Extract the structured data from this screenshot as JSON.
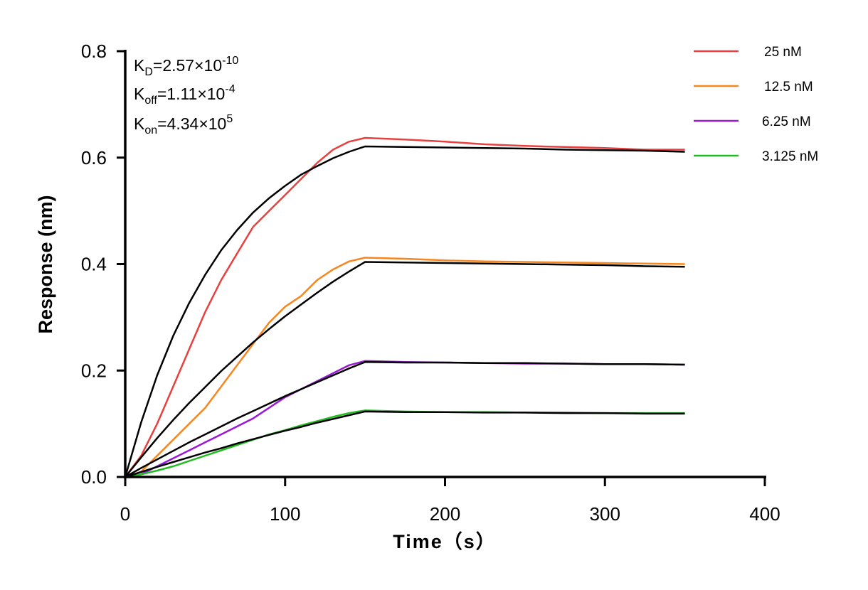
{
  "chart_data": {
    "type": "line",
    "xlabel": "Time（s）",
    "ylabel": "Response (nm)",
    "xlim": [
      0,
      400
    ],
    "ylim": [
      0,
      0.8
    ],
    "xticks": [
      "0",
      "100",
      "200",
      "300",
      "400"
    ],
    "yticks": [
      "0.0",
      "0.2",
      "0.4",
      "0.6",
      "0.8"
    ],
    "grid": false,
    "legend_position": "top-right",
    "annotations": {
      "kd": {
        "k": "K",
        "sub": "D",
        "val": "=2.57×10",
        "exp": "-10"
      },
      "koff": {
        "k": "K",
        "sub": "off",
        "val": "=1.11×10",
        "exp": "-4"
      },
      "kon": {
        "k": "K",
        "sub": "on",
        "val": "=4.34×10",
        "exp": "5"
      }
    },
    "x": [
      0,
      10,
      20,
      30,
      40,
      50,
      60,
      70,
      80,
      90,
      100,
      110,
      120,
      130,
      140,
      150,
      175,
      200,
      225,
      250,
      275,
      300,
      325,
      350
    ],
    "series": [
      {
        "name": "25 nM",
        "color": "#e8403f",
        "values": [
          0,
          0.04,
          0.1,
          0.17,
          0.24,
          0.31,
          0.37,
          0.42,
          0.47,
          0.5,
          0.53,
          0.56,
          0.59,
          0.615,
          0.63,
          0.637,
          0.634,
          0.63,
          0.625,
          0.622,
          0.62,
          0.618,
          0.615,
          0.615
        ],
        "fit": [
          0,
          0.103,
          0.191,
          0.265,
          0.327,
          0.38,
          0.426,
          0.464,
          0.497,
          0.524,
          0.547,
          0.568,
          0.584,
          0.599,
          0.611,
          0.621,
          0.62,
          0.619,
          0.618,
          0.617,
          0.615,
          0.614,
          0.613,
          0.611
        ]
      },
      {
        "name": "12.5 nM",
        "color": "#f7861f",
        "values": [
          0,
          0.01,
          0.04,
          0.07,
          0.1,
          0.13,
          0.17,
          0.21,
          0.25,
          0.29,
          0.32,
          0.34,
          0.37,
          0.39,
          0.405,
          0.412,
          0.41,
          0.407,
          0.405,
          0.404,
          0.403,
          0.402,
          0.401,
          0.4
        ],
        "fit": [
          0,
          0.037,
          0.073,
          0.107,
          0.139,
          0.169,
          0.199,
          0.226,
          0.253,
          0.278,
          0.302,
          0.324,
          0.346,
          0.367,
          0.386,
          0.404,
          0.403,
          0.402,
          0.401,
          0.4,
          0.399,
          0.398,
          0.396,
          0.395
        ]
      },
      {
        "name": "6.25 nM",
        "color": "#9b17d6",
        "values": [
          0,
          0.005,
          0.02,
          0.035,
          0.05,
          0.065,
          0.08,
          0.095,
          0.11,
          0.13,
          0.15,
          0.165,
          0.18,
          0.195,
          0.21,
          0.218,
          0.216,
          0.215,
          0.214,
          0.213,
          0.213,
          0.212,
          0.212,
          0.211
        ],
        "fit": [
          0,
          0.017,
          0.033,
          0.049,
          0.065,
          0.08,
          0.095,
          0.11,
          0.124,
          0.138,
          0.152,
          0.165,
          0.178,
          0.191,
          0.204,
          0.216,
          0.215,
          0.215,
          0.214,
          0.214,
          0.213,
          0.212,
          0.212,
          0.211
        ]
      },
      {
        "name": "3.125 nM",
        "color": "#1fbd1f",
        "values": [
          0,
          0.005,
          0.012,
          0.02,
          0.03,
          0.04,
          0.05,
          0.06,
          0.07,
          0.08,
          0.088,
          0.097,
          0.105,
          0.113,
          0.12,
          0.125,
          0.123,
          0.122,
          0.122,
          0.121,
          0.121,
          0.12,
          0.12,
          0.12
        ],
        "fit": [
          0,
          0.0095,
          0.019,
          0.028,
          0.037,
          0.046,
          0.054,
          0.063,
          0.071,
          0.079,
          0.087,
          0.094,
          0.102,
          0.109,
          0.116,
          0.123,
          0.122,
          0.122,
          0.121,
          0.121,
          0.12,
          0.12,
          0.119,
          0.119
        ]
      }
    ],
    "fit_color": "#000000"
  }
}
